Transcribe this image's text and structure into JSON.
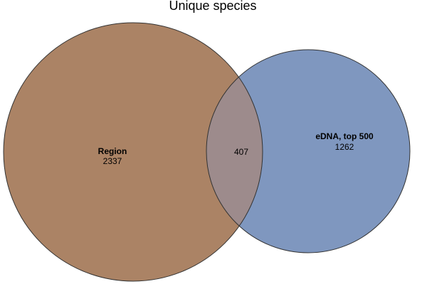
{
  "title": "Unique species",
  "sets": {
    "region": {
      "name": "Region",
      "count": "2337",
      "color": "#ab8365"
    },
    "edna": {
      "name": "eDNA, top 500",
      "count": "1262",
      "color": "#7f97bf"
    }
  },
  "intersection": {
    "count": "407",
    "color": "#9d8b8c"
  },
  "outline_color": "#333333"
}
